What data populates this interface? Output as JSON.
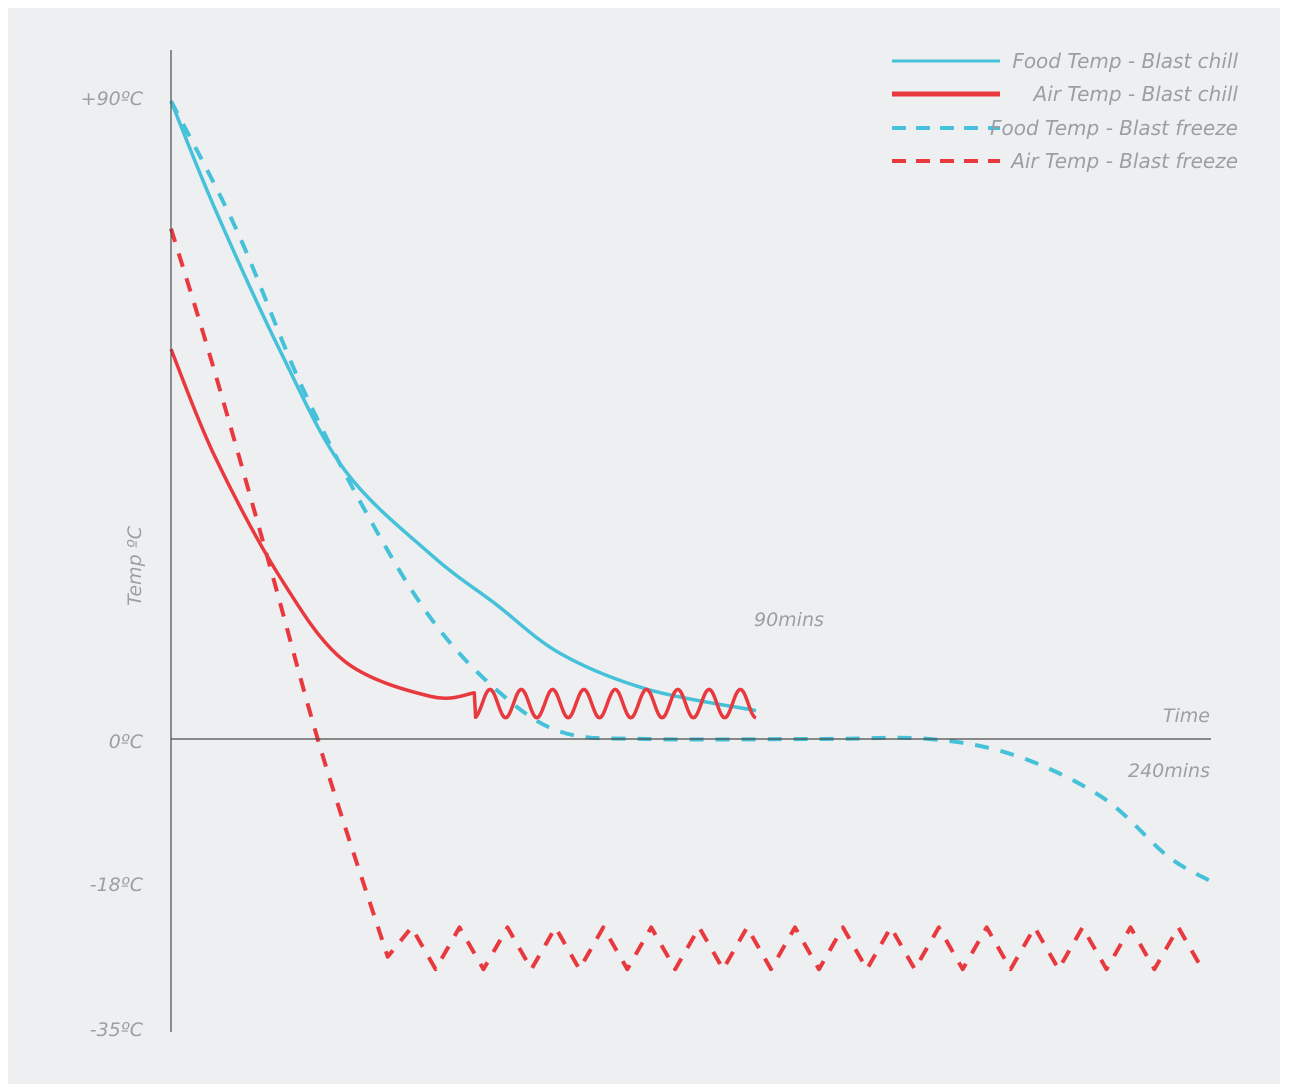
{
  "chart_data": {
    "type": "line",
    "title": "",
    "xlabel": "Time",
    "ylabel": "Temp ºC",
    "y_ticks": [
      "+90ºC",
      "0ºC",
      "-18ºC",
      "-35ºC"
    ],
    "y_tick_values": [
      90,
      0,
      -18,
      -35
    ],
    "ylim": [
      -35,
      90
    ],
    "xlim": [
      0,
      240
    ],
    "annotations": {
      "chill_end": "90mins",
      "freeze_end": "240mins"
    },
    "legend_position": "top-right",
    "colors": {
      "food": "#45c1d9",
      "air": "#e8393f"
    },
    "series": [
      {
        "name": "Food Temp - Blast chill",
        "style": "solid",
        "color": "#45c1d9",
        "points": [
          [
            0,
            90
          ],
          [
            10,
            75
          ],
          [
            25,
            55
          ],
          [
            40,
            38
          ],
          [
            60,
            26
          ],
          [
            75,
            19
          ],
          [
            90,
            12
          ],
          [
            110,
            7
          ],
          [
            135,
            4
          ]
        ]
      },
      {
        "name": "Air Temp - Blast chill",
        "style": "solid",
        "color": "#e8393f",
        "points": [
          [
            0,
            55
          ],
          [
            10,
            40
          ],
          [
            25,
            23
          ],
          [
            40,
            11
          ],
          [
            60,
            6
          ],
          [
            70,
            6.5
          ]
        ],
        "oscillation": {
          "from_x": 70,
          "to_x": 135,
          "center": 5,
          "amplitude": 2,
          "cycles": 9
        }
      },
      {
        "name": "Food Temp - Blast freeze",
        "style": "dashed",
        "color": "#45c1d9",
        "points": [
          [
            0,
            90
          ],
          [
            15,
            72
          ],
          [
            30,
            50
          ],
          [
            45,
            32
          ],
          [
            60,
            17
          ],
          [
            75,
            7
          ],
          [
            90,
            1
          ],
          [
            110,
            0
          ],
          [
            150,
            0
          ],
          [
            175,
            0
          ],
          [
            195,
            -2
          ],
          [
            215,
            -7
          ],
          [
            230,
            -14
          ],
          [
            240,
            -17
          ]
        ]
      },
      {
        "name": "Air Temp - Blast freeze",
        "style": "dashed",
        "color": "#e8393f",
        "points": [
          [
            0,
            72
          ],
          [
            10,
            52
          ],
          [
            23,
            24
          ],
          [
            35,
            -2
          ],
          [
            50,
            -26
          ]
        ],
        "oscillation": {
          "from_x": 50,
          "to_x": 238,
          "center": -25,
          "amplitude": 2.5,
          "cycles": 17
        }
      }
    ]
  }
}
